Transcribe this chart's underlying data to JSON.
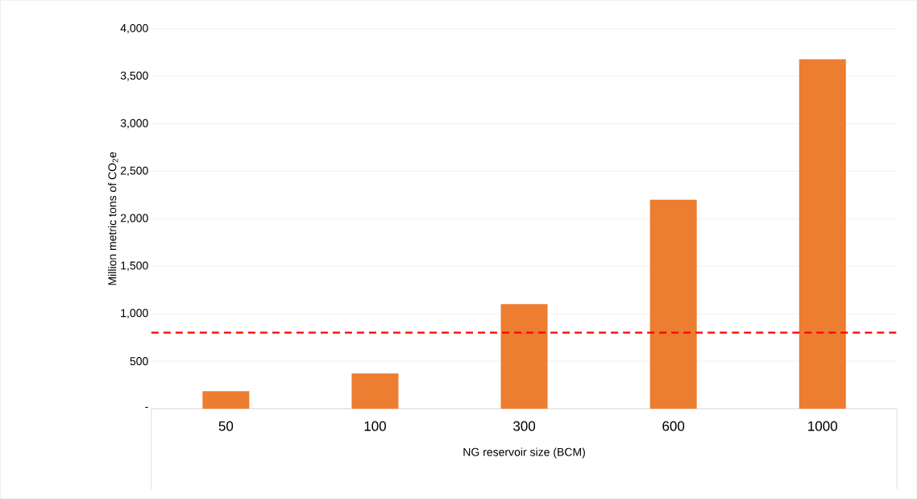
{
  "chart_data": {
    "type": "bar",
    "xlabel": "NG reservoir size (BCM)",
    "ylabel": "Million metric tons of CO$_{2}$e",
    "categories": [
      "50",
      "100",
      "300",
      "600",
      "1000"
    ],
    "values": [
      185,
      370,
      1100,
      2200,
      3680
    ],
    "color": "#ed7d31",
    "ylim": [
      0,
      4000
    ],
    "yticks": [
      {
        "value": 0,
        "label": "-"
      },
      {
        "value": 500,
        "label": "500"
      },
      {
        "value": 1000,
        "label": "1,000"
      },
      {
        "value": 1500,
        "label": "1,500"
      },
      {
        "value": 2000,
        "label": "2,000"
      },
      {
        "value": 2500,
        "label": "2,500"
      },
      {
        "value": 3000,
        "label": "3,000"
      },
      {
        "value": 3500,
        "label": "3,500"
      },
      {
        "value": 4000,
        "label": "4,000"
      }
    ],
    "grid": "y",
    "ref_lines": [
      {
        "axis": "y",
        "value": 800,
        "color": "#ff0000",
        "line_style": "dashed"
      }
    ]
  }
}
